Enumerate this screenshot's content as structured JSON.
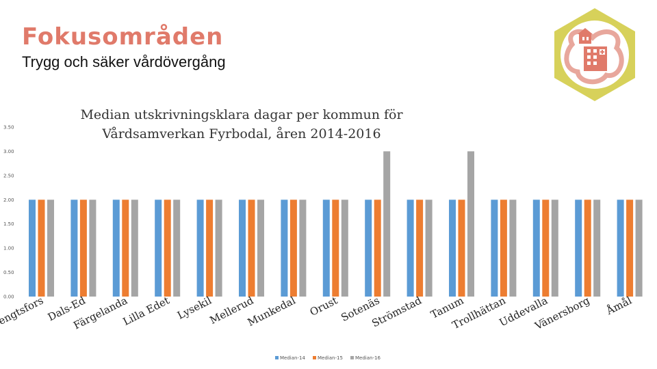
{
  "header": {
    "title": "Fokusområden",
    "subtitle": "Trygg och säker vårdövergång"
  },
  "logo": {
    "icon": "hospital-building-icon",
    "frame_color": "#d7d15a",
    "accent_color": "#e07a6a"
  },
  "chart_data": {
    "type": "bar",
    "title_lines": [
      "Median utskrivningsklara dagar per kommun för",
      "Vårdsamverkan Fyrbodal, åren 2014-2016"
    ],
    "categories": [
      "Bengtsfors",
      "Dals-Ed",
      "Färgelanda",
      "Lilla Edet",
      "Lysekil",
      "Mellerud",
      "Munkedal",
      "Orust",
      "Sotenäs",
      "Strömstad",
      "Tanum",
      "Trollhättan",
      "Uddevalla",
      "Vänersborg",
      "Åmål"
    ],
    "series": [
      {
        "name": "Median-14",
        "color": "#5b9bd5",
        "values": [
          2,
          2,
          2,
          2,
          2,
          2,
          2,
          2,
          2,
          2,
          2,
          2,
          2,
          2,
          2
        ]
      },
      {
        "name": "Median-15",
        "color": "#ed7d31",
        "values": [
          2,
          2,
          2,
          2,
          2,
          2,
          2,
          2,
          2,
          2,
          2,
          2,
          2,
          2,
          2
        ]
      },
      {
        "name": "Median-16",
        "color": "#a5a5a5",
        "values": [
          2,
          2,
          2,
          2,
          2,
          2,
          2,
          2,
          3,
          2,
          3,
          2,
          2,
          2,
          2
        ]
      }
    ],
    "y_ticks": [
      "0.00",
      "0.50",
      "1.00",
      "1.50",
      "2.00",
      "2.50",
      "3.00",
      "3.50"
    ],
    "ylim": [
      0,
      3.5
    ],
    "grid": false,
    "legend_position": "bottom"
  }
}
